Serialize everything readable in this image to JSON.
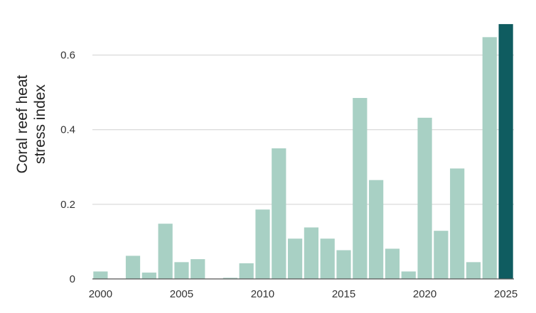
{
  "chart_data": {
    "type": "bar",
    "ylabel_lines": [
      "Coral reef heat",
      "stress index"
    ],
    "xlabel": "",
    "title": "",
    "x": [
      2000,
      2001,
      2002,
      2003,
      2004,
      2005,
      2006,
      2007,
      2008,
      2009,
      2010,
      2011,
      2012,
      2013,
      2014,
      2015,
      2016,
      2017,
      2018,
      2019,
      2020,
      2021,
      2022,
      2023,
      2024,
      2025
    ],
    "values": [
      0.02,
      0.0,
      0.062,
      0.017,
      0.148,
      0.045,
      0.053,
      0.0,
      0.003,
      0.042,
      0.186,
      0.35,
      0.108,
      0.138,
      0.108,
      0.077,
      0.485,
      0.265,
      0.081,
      0.02,
      0.432,
      0.129,
      0.296,
      0.045,
      0.648,
      0.683
    ],
    "highlight_index": 25,
    "xticks": [
      2000,
      2005,
      2010,
      2015,
      2020,
      2025
    ],
    "yticks": [
      0,
      0.2,
      0.4,
      0.6
    ],
    "ytick_labels": [
      "0",
      "0.2",
      "0.4",
      "0.6"
    ],
    "ylim": [
      0,
      0.7
    ],
    "grid": true,
    "colors": {
      "bar": "#a8d0c4",
      "highlight": "#0f5c60",
      "grid": "#d0d0d0",
      "axis": "#555555"
    }
  }
}
